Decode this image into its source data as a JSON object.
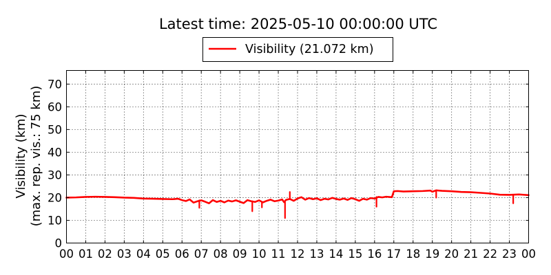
{
  "chart_data": {
    "type": "line",
    "title": "Latest time: 2025-05-10 00:00:00 UTC",
    "ylabel_lines": [
      "Visibility (km)",
      "(max. rep. vis.: 75 km)"
    ],
    "xlabel": "",
    "ylim": [
      0,
      76
    ],
    "xlim": [
      0,
      24
    ],
    "grid": true,
    "legend_position": "top-center",
    "x_tick_labels": [
      "00",
      "01",
      "02",
      "03",
      "04",
      "05",
      "06",
      "07",
      "08",
      "09",
      "10",
      "11",
      "12",
      "13",
      "14",
      "15",
      "16",
      "17",
      "18",
      "19",
      "20",
      "21",
      "22",
      "23",
      "00"
    ],
    "y_tick_labels": [
      "0",
      "10",
      "20",
      "30",
      "40",
      "50",
      "60",
      "70"
    ],
    "y_tick_values": [
      0,
      10,
      20,
      30,
      40,
      50,
      60,
      70
    ],
    "series": [
      {
        "name": "Visibility (21.072 km)",
        "color": "#ff0000",
        "x_hours": [
          0,
          0.5,
          1,
          1.5,
          2,
          2.5,
          3,
          3.5,
          4,
          4.5,
          5,
          5.5,
          5.8,
          6,
          6.2,
          6.4,
          6.6,
          6.8,
          7,
          7.2,
          7.4,
          7.6,
          7.8,
          8,
          8.2,
          8.4,
          8.6,
          8.8,
          9,
          9.2,
          9.4,
          9.6,
          9.8,
          10,
          10.2,
          10.4,
          10.6,
          10.8,
          11,
          11.2,
          11.3,
          11.4,
          11.6,
          11.8,
          12,
          12.2,
          12.4,
          12.6,
          12.8,
          13,
          13.2,
          13.4,
          13.6,
          13.8,
          14,
          14.2,
          14.4,
          14.6,
          14.8,
          15,
          15.2,
          15.4,
          15.6,
          15.8,
          16,
          16.2,
          16.4,
          16.6,
          16.9,
          17,
          17.2,
          17.5,
          18,
          18.5,
          18.9,
          19,
          19.2,
          19.5,
          20,
          20.5,
          21,
          21.5,
          22,
          22.5,
          23,
          23.5,
          24
        ],
        "y_km": [
          20,
          20.1,
          20.3,
          20.4,
          20.3,
          20.2,
          20,
          19.9,
          19.6,
          19.5,
          19.4,
          19.3,
          19.5,
          18.9,
          18.5,
          19.2,
          17.8,
          18.4,
          18.8,
          18.2,
          17.5,
          18.9,
          18.1,
          18.6,
          17.9,
          18.7,
          18.3,
          18.8,
          18.2,
          17.6,
          18.9,
          18.4,
          18.1,
          18.8,
          17.9,
          18.6,
          19.1,
          18.4,
          18.7,
          19.2,
          18,
          19,
          19.4,
          18.6,
          19.6,
          20.2,
          19.1,
          19.8,
          19.3,
          19.7,
          18.9,
          19.5,
          19.2,
          19.9,
          19.4,
          19.1,
          19.6,
          19,
          19.8,
          19.3,
          18.6,
          19.5,
          19.1,
          19.8,
          19.6,
          20.3,
          20.1,
          20.4,
          20.2,
          22.8,
          22.9,
          22.7,
          22.8,
          22.9,
          23.1,
          22.6,
          23.2,
          23,
          22.8,
          22.5,
          22.4,
          22.1,
          21.8,
          21.3,
          21.2,
          21.4,
          21.1
        ],
        "spikes": [
          {
            "x_hours": 11.35,
            "y_km": 11
          },
          {
            "x_hours": 9.65,
            "y_km": 14
          },
          {
            "x_hours": 6.9,
            "y_km": 15.5
          },
          {
            "x_hours": 10.15,
            "y_km": 15.7
          },
          {
            "x_hours": 11.6,
            "y_km": 22.5
          },
          {
            "x_hours": 16.1,
            "y_km": 16
          },
          {
            "x_hours": 19.2,
            "y_km": 20
          },
          {
            "x_hours": 23.2,
            "y_km": 17.5
          }
        ]
      }
    ]
  }
}
